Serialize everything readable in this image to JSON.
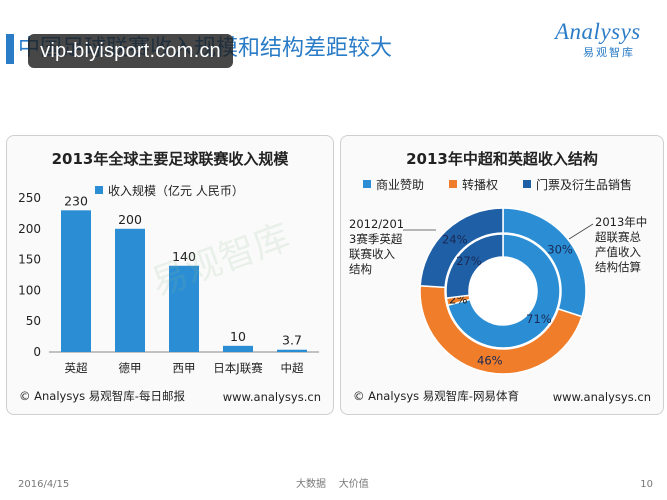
{
  "slide": {
    "title": "中国足球联赛收入规模和结构差距较大",
    "overlay_text": "vip-biyisport.com.cn",
    "logo_word": "Analysys",
    "logo_cn": "易观智库",
    "date": "2016/4/15",
    "slogan": "大数据    大价值",
    "page_number": "10"
  },
  "colors": {
    "brand": "#2a7cc7",
    "bar": "#2b8ed4",
    "business": "#2b8ed4",
    "broadcast": "#ef7d2a",
    "tickets": "#1f5fa6"
  },
  "chart_data": [
    {
      "type": "bar",
      "title": "2013年全球主要足球联赛收入规模",
      "legend": "收入规模（亿元 人民币）",
      "categories": [
        "英超",
        "德甲",
        "西甲",
        "日本J联赛",
        "中超"
      ],
      "values": [
        230,
        200,
        140,
        10,
        3.7
      ],
      "value_labels": [
        "230",
        "200",
        "140",
        "10",
        "3.7"
      ],
      "ylim": [
        0,
        250
      ],
      "yticks": [
        "0",
        "50",
        "100",
        "150",
        "200",
        "250"
      ],
      "grid": false,
      "source": "© Analysys 易观智库-每日邮报",
      "url": "www.analysys.cn"
    },
    {
      "type": "pie",
      "title": "2013年中超和英超收入结构",
      "labels": [
        "商业赞助",
        "转播权",
        "门票及衍生品销售"
      ],
      "series": [
        {
          "values": [
            71,
            2,
            27
          ],
          "value_labels": [
            "71%",
            "2%",
            "27%"
          ],
          "ring": "inner",
          "annotation": "2013年中超联赛总产值收入结构估算"
        },
        {
          "values": [
            30,
            46,
            24
          ],
          "value_labels": [
            "30%",
            "46%",
            "24%"
          ],
          "ring": "outer",
          "annotation": "2012/2013赛季英超联赛收入结构"
        }
      ],
      "annotation_left": [
        "2012/201",
        "3赛季英超",
        "联赛收入",
        "结构"
      ],
      "annotation_right": [
        "2013年中",
        "超联赛总",
        "产值收入",
        "结构估算"
      ],
      "source": "© Analysys 易观智库-网易体育",
      "url": "www.analysys.cn"
    }
  ]
}
